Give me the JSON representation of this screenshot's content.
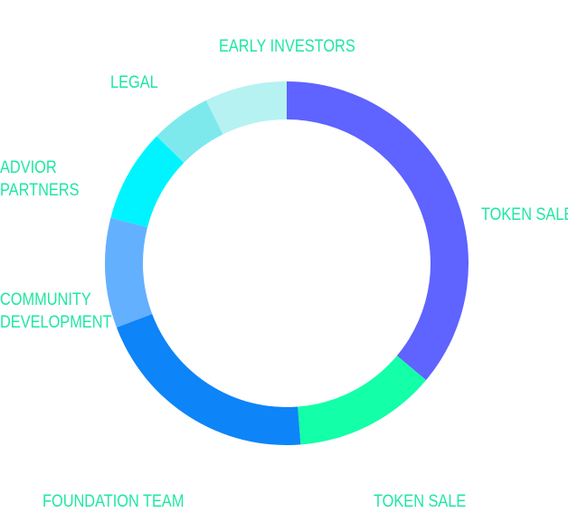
{
  "chart_data": {
    "type": "pie",
    "donut": true,
    "label_color": "#1de8a0",
    "slices": [
      {
        "label_lines": [
          "TOKEN SALE"
        ],
        "value": 37,
        "color": "#5f63ff"
      },
      {
        "label_lines": [
          "TOKEN SALE"
        ],
        "value": 13,
        "color": "#13ffa8"
      },
      {
        "label_lines": [
          "FOUNDATION TEAM"
        ],
        "value": 21,
        "color": "#0d84f8"
      },
      {
        "label_lines": [
          "COMMUNITY",
          "DEVELOPMENT"
        ],
        "value": 10,
        "color": "#63b0ff"
      },
      {
        "label_lines": [
          "ADVIOR",
          "PARTNERS"
        ],
        "value": 8.5,
        "color": "#00f4ff"
      },
      {
        "label_lines": [
          "LEGAL"
        ],
        "value": 5.5,
        "color": "#7de9ec"
      },
      {
        "label_lines": [
          "EARLY INVESTORS"
        ],
        "value": 7.5,
        "color": "#b6f2f2"
      }
    ]
  }
}
